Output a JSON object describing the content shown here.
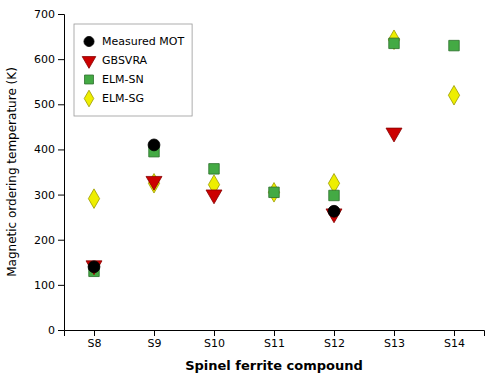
{
  "chart_data": {
    "type": "scatter",
    "xlabel": "Spinel ferrite compound",
    "ylabel": "Magnetic ordering temperature (K)",
    "categories": [
      "S8",
      "S9",
      "S10",
      "S11",
      "S12",
      "S13",
      "S14"
    ],
    "series": [
      {
        "name": "Measured MOT",
        "color": "#000000",
        "marker": "circle",
        "values": [
          140,
          410,
          null,
          null,
          263,
          null,
          null
        ]
      },
      {
        "name": "GBSVRA",
        "color": "#cc0000",
        "marker": "triangle-down",
        "values": [
          143,
          330,
          300,
          null,
          258,
          437,
          null
        ]
      },
      {
        "name": "ELM-SN",
        "color": "#44aa44",
        "marker": "square",
        "values": [
          130,
          395,
          357,
          305,
          298,
          635,
          630
        ]
      },
      {
        "name": "ELM-SG",
        "color": "#eeee00",
        "marker": "diamond",
        "values": [
          291,
          325,
          322,
          305,
          325,
          643,
          520
        ]
      }
    ],
    "ylim": [
      0,
      700
    ],
    "yticks": [
      0,
      100,
      200,
      300,
      400,
      500,
      600,
      700
    ],
    "grid": false,
    "legend": "upper left"
  }
}
